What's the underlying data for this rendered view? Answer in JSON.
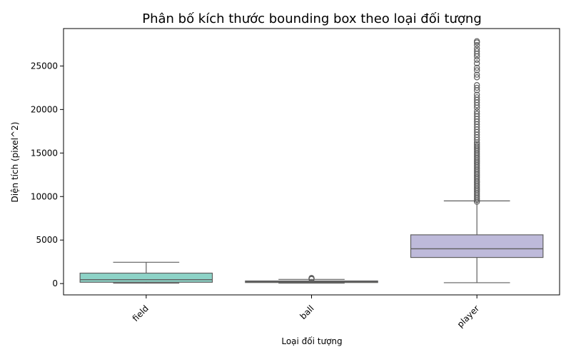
{
  "chart_data": {
    "type": "box",
    "title": "Phân bố kích thước bounding box theo loại đối tượng",
    "xlabel": "Loại đối tượng",
    "ylabel": "Diện tích (pixel^2)",
    "ylim": [
      -1300,
      29300
    ],
    "yticks": [
      0,
      5000,
      10000,
      15000,
      20000,
      25000
    ],
    "categories": [
      "field",
      "ball",
      "player"
    ],
    "boxes": [
      {
        "category": "field",
        "color": "#8dd3c7",
        "whisker_low": 50,
        "q1": 150,
        "median": 450,
        "q3": 1200,
        "whisker_high": 2450,
        "outliers": []
      },
      {
        "category": "ball",
        "color": "#ffffb3",
        "whisker_low": 50,
        "q1": 120,
        "median": 200,
        "q3": 300,
        "whisker_high": 480,
        "outliers": [
          520,
          560,
          600,
          640
        ]
      },
      {
        "category": "player",
        "color": "#bebada",
        "whisker_low": 100,
        "q1": 3000,
        "median": 4000,
        "q3": 5600,
        "whisker_high": 9500,
        "outliers": [
          9400,
          9600,
          9800,
          10000,
          10200,
          10400,
          10600,
          10800,
          11000,
          11200,
          11400,
          11600,
          11800,
          12000,
          12200,
          12400,
          12600,
          12800,
          13000,
          13200,
          13400,
          13600,
          13800,
          14000,
          14200,
          14400,
          14600,
          14800,
          15000,
          15200,
          15400,
          15600,
          15800,
          16000,
          16200,
          16500,
          16800,
          17100,
          17400,
          17700,
          18000,
          18300,
          18600,
          18900,
          19200,
          19500,
          19800,
          20200,
          20500,
          20800,
          21100,
          21400,
          21700,
          22200,
          22500,
          22800,
          23700,
          24000,
          24500,
          24800,
          25300,
          25700,
          26100,
          26400,
          26700,
          27000,
          27400,
          27700,
          27850
        ]
      }
    ],
    "grid": false,
    "x_tick_rotation": 45
  }
}
